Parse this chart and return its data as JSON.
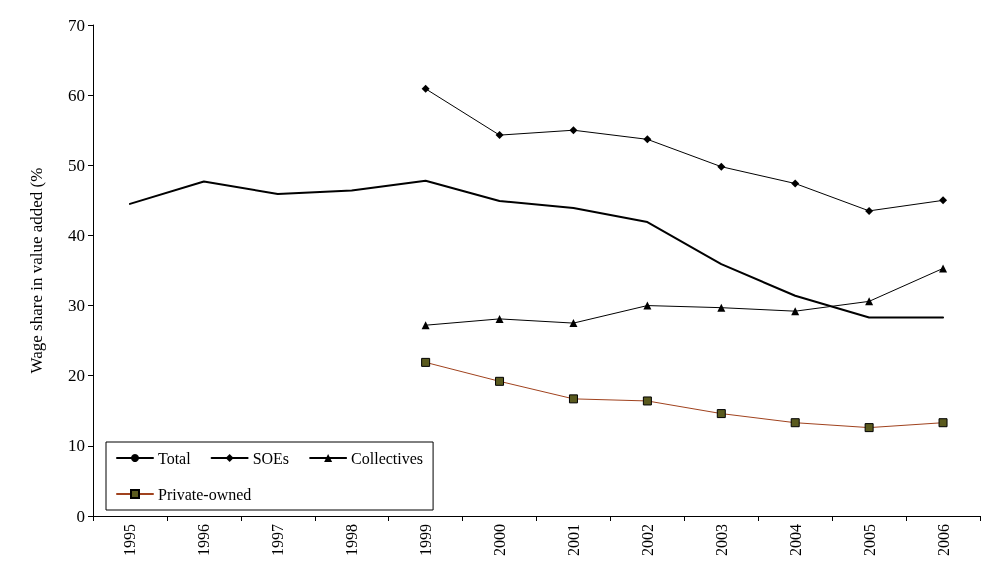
{
  "chart_data": {
    "type": "line",
    "ylabel": "Wage share in value added (%",
    "categories": [
      "1995",
      "1996",
      "1997",
      "1998",
      "1999",
      "2000",
      "2001",
      "2002",
      "2003",
      "2004",
      "2005",
      "2006"
    ],
    "ylim": [
      0,
      70
    ],
    "yticks": [
      0,
      10,
      20,
      30,
      40,
      50,
      60,
      70
    ],
    "grid": false,
    "legend": "bottom left",
    "line_style": "solid",
    "series": [
      {
        "name": "Total",
        "color": "#000000",
        "marker": "none",
        "values": [
          44.5,
          47.7,
          45.9,
          46.4,
          47.8,
          44.9,
          43.9,
          41.9,
          35.9,
          31.4,
          28.3,
          28.3
        ]
      },
      {
        "name": "SOEs",
        "color": "#000000",
        "marker": "diamond",
        "values": [
          null,
          null,
          null,
          null,
          60.9,
          54.3,
          55.0,
          53.7,
          49.8,
          47.4,
          43.5,
          45.0
        ]
      },
      {
        "name": "Collectives",
        "color": "#000000",
        "marker": "triangle",
        "values": [
          null,
          null,
          null,
          null,
          27.2,
          28.1,
          27.5,
          30.0,
          29.7,
          29.2,
          30.6,
          35.3
        ]
      },
      {
        "name": "Private-owned",
        "color": "#a0421e",
        "marker": "square",
        "values": [
          null,
          null,
          null,
          null,
          21.9,
          19.2,
          16.7,
          16.4,
          14.6,
          13.3,
          12.6,
          13.3
        ]
      }
    ]
  }
}
